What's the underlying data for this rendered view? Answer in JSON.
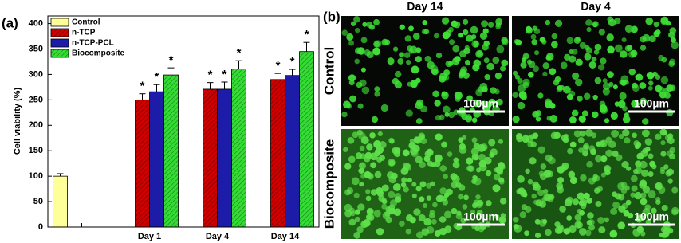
{
  "chart_data": {
    "type": "bar",
    "panel_label": "(a)",
    "ylabel": "Cell viability (%)",
    "categories": [
      null,
      "Day 1",
      "Day 4",
      "Day 14"
    ],
    "series": [
      {
        "name": "Control",
        "color": "#ffff99",
        "hatch": false,
        "values": [
          100,
          null,
          null,
          null
        ],
        "errors": [
          5,
          null,
          null,
          null
        ],
        "markers": [
          null,
          null,
          null,
          null
        ]
      },
      {
        "name": "n-TCP",
        "color": "#d00000",
        "hatch": true,
        "values": [
          null,
          250,
          271,
          290
        ],
        "errors": [
          null,
          12,
          13,
          12
        ],
        "markers": [
          null,
          "*",
          "*",
          "*"
        ]
      },
      {
        "name": "n-TCP-PCL",
        "color": "#1c1ca8",
        "hatch": false,
        "values": [
          null,
          266,
          271,
          298
        ],
        "errors": [
          null,
          14,
          14,
          12
        ],
        "markers": [
          null,
          "*",
          "*",
          "*"
        ]
      },
      {
        "name": "Biocomposite",
        "color": "#33dd33",
        "hatch": true,
        "values": [
          null,
          299,
          311,
          345
        ],
        "errors": [
          null,
          14,
          16,
          18
        ],
        "markers": [
          null,
          "*",
          "*",
          "*"
        ]
      }
    ],
    "ylim": [
      0,
      415
    ],
    "yticks": [
      0,
      50,
      100,
      150,
      200,
      250,
      300,
      350,
      400
    ],
    "legend": "upper-left"
  },
  "images": {
    "panel_label": "(b)",
    "columns": [
      "Day 14",
      "Day 4"
    ],
    "rows": [
      "Control",
      "Biocomposite"
    ],
    "scale_bar": "100µm"
  }
}
